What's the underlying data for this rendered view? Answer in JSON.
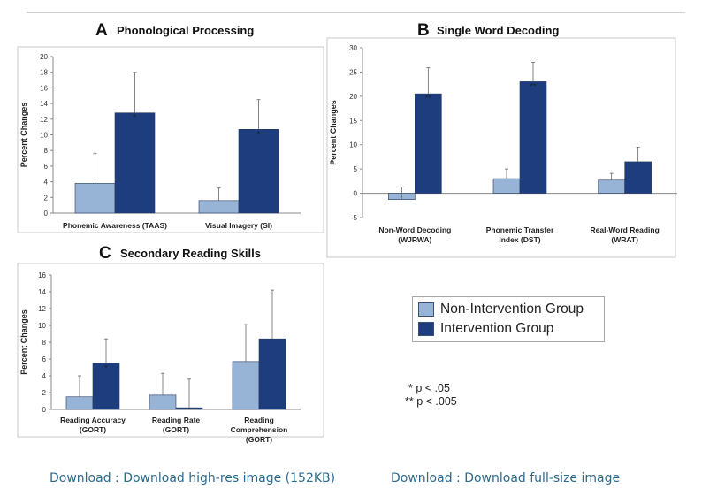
{
  "colors": {
    "non_intervention": "#97b3d6",
    "intervention": "#1d3d7e",
    "axis": "#888888",
    "link": "#2a6a8c"
  },
  "legend": {
    "non_intervention": "Non-Intervention Group",
    "intervention": "Intervention Group"
  },
  "significance": {
    "one": "* p < .05",
    "two": "** p < .005"
  },
  "links": {
    "high_res": "Download : Download high-res image (152KB)",
    "full_size": "Download : Download full-size image"
  },
  "chart_data": [
    {
      "type": "bar",
      "panel_letter": "A",
      "title": "Phonological Processing",
      "ylabel": "Percent Changes",
      "ylim": [
        0,
        20
      ],
      "yticks": [
        0,
        2,
        4,
        6,
        8,
        10,
        12,
        14,
        16,
        18,
        20
      ],
      "categories": [
        [
          "Phonemic Awareness (TAAS)"
        ],
        [
          "Visual Imagery (SI)"
        ]
      ],
      "series": [
        {
          "name": "Non-Intervention Group",
          "values": [
            3.8,
            1.6
          ],
          "errors": [
            3.8,
            1.6
          ]
        },
        {
          "name": "Intervention Group",
          "values": [
            12.8,
            10.7
          ],
          "errors": [
            5.2,
            3.8
          ]
        }
      ],
      "annotations": [
        "*",
        "*"
      ]
    },
    {
      "type": "bar",
      "panel_letter": "B",
      "title": "Single Word Decoding",
      "ylabel": "Percent Changes",
      "ylim": [
        -5,
        30
      ],
      "yticks": [
        -5,
        0,
        5,
        10,
        15,
        20,
        25,
        30
      ],
      "categories": [
        [
          "Non-Word Decoding",
          "(WJRWA)"
        ],
        [
          "Phonemic Transfer",
          "Index (DST)"
        ],
        [
          "Real-Word Reading",
          "(WRAT)"
        ]
      ],
      "series": [
        {
          "name": "Non-Intervention Group",
          "values": [
            -1.3,
            3.0,
            2.7
          ],
          "errors": [
            2.6,
            2.0,
            1.4
          ]
        },
        {
          "name": "Intervention Group",
          "values": [
            20.5,
            23.0,
            6.5
          ],
          "errors": [
            5.4,
            4.0,
            3.0
          ]
        }
      ],
      "annotations": [
        "**",
        "**",
        ""
      ]
    },
    {
      "type": "bar",
      "panel_letter": "C",
      "title": "Secondary Reading Skills",
      "ylabel": "Percent Changes",
      "ylim": [
        0,
        16
      ],
      "yticks": [
        0,
        2,
        4,
        6,
        8,
        10,
        12,
        14,
        16
      ],
      "categories": [
        [
          "Reading Accuracy",
          "(GORT)"
        ],
        [
          "Reading Rate",
          "(GORT)"
        ],
        [
          "Reading",
          "Comprehension",
          "(GORT)"
        ]
      ],
      "series": [
        {
          "name": "Non-Intervention Group",
          "values": [
            1.5,
            1.7,
            5.7
          ],
          "errors": [
            2.5,
            2.6,
            4.4
          ]
        },
        {
          "name": "Intervention Group",
          "values": [
            5.5,
            0.2,
            8.4
          ],
          "errors": [
            2.9,
            3.4,
            5.8
          ]
        }
      ],
      "annotations": [
        "*",
        "",
        ""
      ]
    }
  ]
}
